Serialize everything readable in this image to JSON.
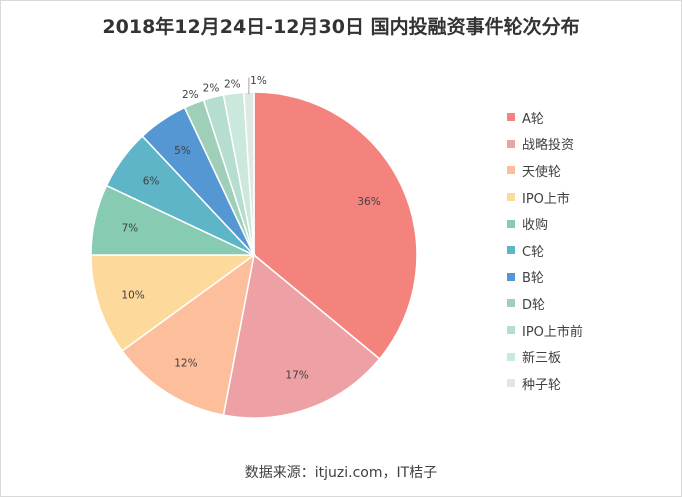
{
  "chart_data": {
    "type": "pie",
    "title": "2018年12月24日-12月30日  国内投融资事件轮次分布",
    "categories": [
      "A轮",
      "战略投资",
      "天使轮",
      "IPO上市",
      "收购",
      "C轮",
      "B轮",
      "D轮",
      "IPO上市前",
      "新三板",
      "种子轮"
    ],
    "values": [
      36,
      17,
      12,
      10,
      7,
      6,
      5,
      2,
      2,
      2,
      1
    ],
    "data_labels": [
      "36%",
      "17%",
      "12%",
      "10%",
      "7%",
      "6%",
      "5%",
      "2%",
      "2%",
      "2%",
      "1%"
    ],
    "colors": [
      "#f4837d",
      "#eea1a5",
      "#fdbf9b",
      "#fdd99b",
      "#87cbb2",
      "#5db5c7",
      "#5497d3",
      "#9fcfb9",
      "#b5ddd0",
      "#cbe8dd",
      "#dfe9e4"
    ],
    "legend_position": "right",
    "source": "数据来源：itjuzi.com，IT桔子"
  }
}
